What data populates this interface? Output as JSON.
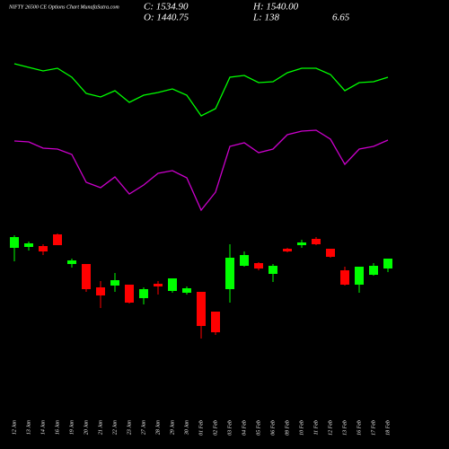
{
  "chart_data": {
    "type": "candlestick",
    "title": "NIFTY 26500 CE Options Chart MunafaSutra.com",
    "header": [
      "C: 1534.90",
      "H: 1540.00",
      "O: 1440.75",
      "L: 138",
      "6.65"
    ],
    "categories": [
      "12 Jan",
      "13 Jan",
      "14 Jan",
      "16 Jan",
      "19 Jan",
      "20 Jan",
      "21 Jan",
      "22 Jan",
      "23 Jan",
      "27 Jan",
      "28 Jan",
      "29 Jan",
      "30 Jan",
      "01 Feb",
      "02 Feb",
      "03 Feb",
      "04 Feb",
      "05 Feb",
      "06 Feb",
      "09 Feb",
      "10 Feb",
      "11 Feb",
      "12 Feb",
      "13 Feb",
      "16 Feb",
      "17 Feb",
      "18 Feb"
    ],
    "open": [
      224,
      225,
      226,
      239,
      206,
      206,
      180,
      182,
      183,
      168,
      184,
      176,
      174,
      175,
      153,
      178,
      204,
      207,
      195,
      223,
      227,
      234,
      223,
      199,
      183,
      194,
      201
    ],
    "high": [
      238,
      231,
      228,
      240,
      212,
      206,
      187,
      196,
      183,
      180,
      187,
      190,
      181,
      175,
      153,
      228,
      220,
      208,
      206,
      224,
      233,
      236,
      223,
      203,
      203,
      207,
      212
    ],
    "low": [
      209,
      221,
      216,
      227,
      202,
      175,
      157,
      175,
      162,
      161,
      172,
      174,
      172,
      123,
      127,
      163,
      203,
      199,
      186,
      219,
      224,
      227,
      213,
      182,
      174,
      193,
      197
    ],
    "close": [
      236,
      229,
      220,
      227,
      210,
      178,
      171,
      188,
      163,
      178,
      181,
      190,
      179,
      137,
      130,
      213,
      216,
      201,
      204,
      220,
      230,
      228,
      214,
      183,
      203,
      204,
      212
    ],
    "up_color": "#00ff00",
    "down_color": "#ff0000",
    "indicators": [
      {
        "color": "#00ff00",
        "values": [
          429,
          425,
          421,
          424,
          414,
          396,
          392,
          399,
          386,
          394,
          397,
          401,
          394,
          371,
          379,
          414,
          416,
          408,
          409,
          419,
          424,
          424,
          417,
          399,
          408,
          409,
          414
        ]
      },
      {
        "color": "#cc00cc",
        "values": [
          343,
          342,
          335,
          334,
          328,
          297,
          291,
          303,
          284,
          294,
          307,
          310,
          302,
          266,
          286,
          337,
          341,
          330,
          334,
          350,
          354,
          355,
          345,
          317,
          334,
          337,
          344
        ]
      }
    ],
    "ylim": [
      0,
      500
    ]
  }
}
